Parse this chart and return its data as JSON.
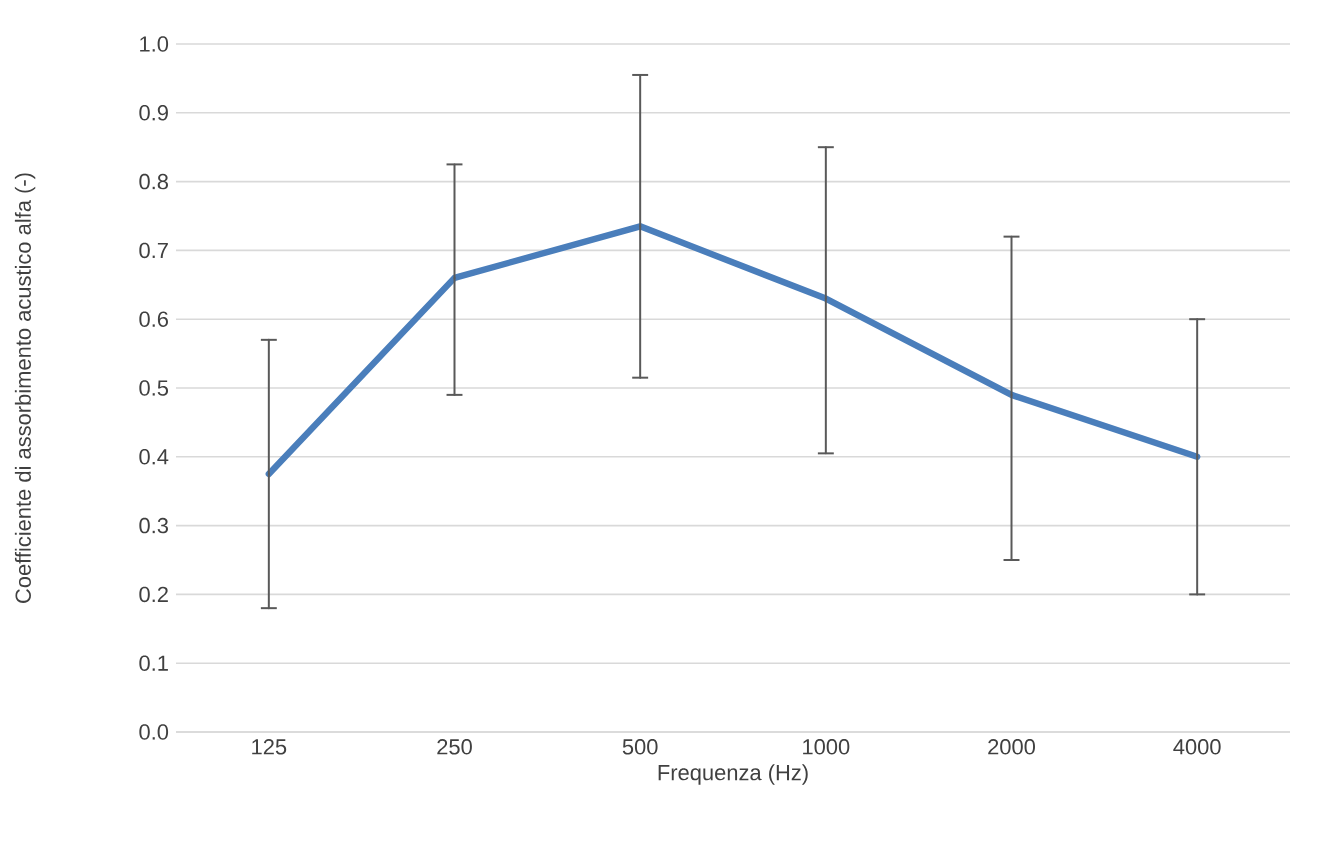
{
  "chart_data": {
    "type": "line",
    "xlabel": "Frequenza (Hz)",
    "ylabel": "Coefficiente di assorbimento acustico alfa (-)",
    "categories": [
      "125",
      "250",
      "500",
      "1000",
      "2000",
      "4000"
    ],
    "series": [
      {
        "color": "#4a7ebb",
        "values": [
          0.375,
          0.66,
          0.735,
          0.63,
          0.49,
          0.4
        ],
        "errors": [
          [
            0.18,
            0.57
          ],
          [
            0.49,
            0.825
          ],
          [
            0.515,
            0.955
          ],
          [
            0.405,
            0.85
          ],
          [
            0.25,
            0.72
          ],
          [
            0.2,
            0.6
          ]
        ]
      }
    ],
    "ylim": [
      0,
      1.0
    ],
    "yticks": [
      {
        "value": 0,
        "label": "0.0"
      },
      {
        "value": 0.1,
        "label": "0.1"
      },
      {
        "value": 0.2,
        "label": "0.2"
      },
      {
        "value": 0.3,
        "label": "0.3"
      },
      {
        "value": 0.4,
        "label": "0.4"
      },
      {
        "value": 0.5,
        "label": "0.5"
      },
      {
        "value": 0.6,
        "label": "0.6"
      },
      {
        "value": 0.7,
        "label": "0.7"
      },
      {
        "value": 0.8,
        "label": "0.8"
      },
      {
        "value": 0.9,
        "label": "0.9"
      },
      {
        "value": 1.0,
        "label": "1.0"
      }
    ],
    "grid": "y",
    "marker": "none",
    "line_style": "solid"
  }
}
